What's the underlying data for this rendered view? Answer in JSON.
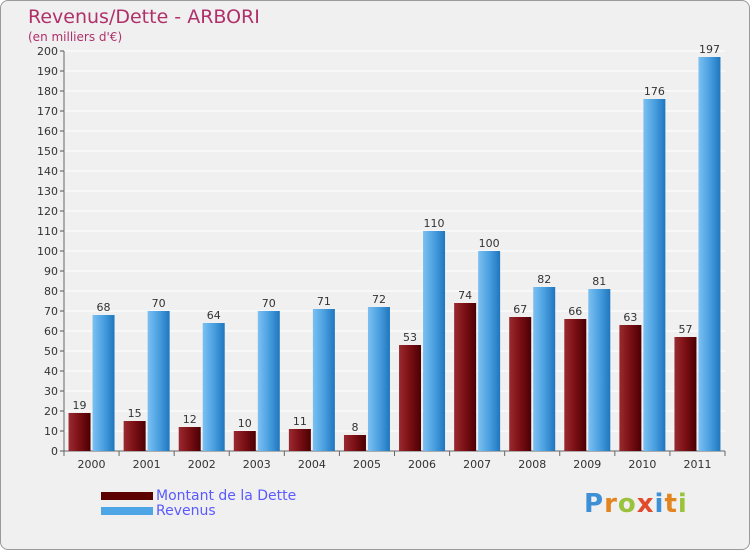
{
  "header": {
    "title": "Revenus/Dette - ARBORI",
    "subtitle": "(en milliers d'€)"
  },
  "chart_data": {
    "type": "bar",
    "title": "Revenus/Dette - ARBORI",
    "ylabel": "(en milliers d'€)",
    "xlabel": "",
    "categories": [
      "2000",
      "2001",
      "2002",
      "2003",
      "2004",
      "2005",
      "2006",
      "2007",
      "2008",
      "2009",
      "2010",
      "2011"
    ],
    "series": [
      {
        "name": "Montant de la Dette",
        "values": [
          19,
          15,
          12,
          10,
          11,
          8,
          53,
          74,
          67,
          66,
          63,
          57
        ],
        "color": "#7a0f14"
      },
      {
        "name": "Revenus",
        "values": [
          68,
          70,
          64,
          70,
          71,
          72,
          110,
          100,
          82,
          81,
          176,
          197
        ],
        "color": "#4aa0e0"
      }
    ],
    "ylim": [
      0,
      200
    ],
    "ytick_step": 10,
    "grid": true,
    "legend_position": "bottom-left"
  },
  "legend": {
    "items": [
      {
        "label": "Montant de la Dette",
        "color": "#5c0000"
      },
      {
        "label": "Revenus",
        "color": "#4ea6e6"
      }
    ]
  },
  "logo": {
    "text": "Proxiti",
    "letter_colors": [
      "#3d8fd6",
      "#e2851f",
      "#9ac23c",
      "#e24a2c",
      "#3d8fd6",
      "#e2851f",
      "#9ac23c"
    ]
  }
}
